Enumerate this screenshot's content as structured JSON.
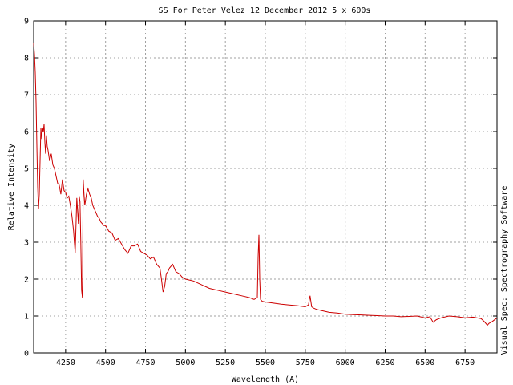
{
  "chart_data": {
    "type": "line",
    "title": "SS For Peter Velez 12 December 2012 5 x 600s",
    "xlabel": "Wavelength (A)",
    "ylabel": "Relative Intensity",
    "side_label": "Visual Spec: Spectrography Software",
    "xlim": [
      4050,
      6950
    ],
    "ylim": [
      0,
      9
    ],
    "xticks": [
      4250,
      4500,
      4750,
      5000,
      5250,
      5500,
      5750,
      6000,
      6250,
      6500,
      6750
    ],
    "yticks": [
      0,
      1,
      2,
      3,
      4,
      5,
      6,
      7,
      8,
      9
    ],
    "grid": true,
    "line_color": "#cc0000",
    "series": [
      {
        "x": [
          4050,
          4055,
          4060,
          4065,
          4070,
          4075,
          4080,
          4085,
          4090,
          4095,
          4100,
          4105,
          4110,
          4115,
          4120,
          4125,
          4130,
          4135,
          4140,
          4150,
          4160,
          4170,
          4180,
          4190,
          4200,
          4210,
          4220,
          4230,
          4240,
          4250,
          4260,
          4270,
          4280,
          4290,
          4300,
          4310,
          4320,
          4330,
          4335,
          4340,
          4345,
          4350,
          4355,
          4360,
          4365,
          4370,
          4380,
          4390,
          4400,
          4410,
          4420,
          4430,
          4440,
          4450,
          4460,
          4470,
          4480,
          4490,
          4500,
          4520,
          4540,
          4560,
          4580,
          4600,
          4620,
          4640,
          4660,
          4680,
          4700,
          4720,
          4740,
          4760,
          4780,
          4800,
          4820,
          4840,
          4850,
          4860,
          4870,
          4880,
          4890,
          4900,
          4920,
          4940,
          4960,
          4980,
          5000,
          5050,
          5100,
          5150,
          5200,
          5250,
          5300,
          5350,
          5400,
          5430,
          5450,
          5455,
          5460,
          5465,
          5470,
          5480,
          5500,
          5550,
          5600,
          5650,
          5700,
          5750,
          5770,
          5780,
          5790,
          5800,
          5820,
          5850,
          5900,
          5950,
          6000,
          6050,
          6100,
          6150,
          6200,
          6250,
          6300,
          6350,
          6400,
          6450,
          6500,
          6530,
          6550,
          6570,
          6600,
          6650,
          6700,
          6750,
          6800,
          6850,
          6870,
          6890,
          6900,
          6920,
          6950
        ],
        "y": [
          8.4,
          8.1,
          7.6,
          6.8,
          5.6,
          4.5,
          3.9,
          4.3,
          5.2,
          6.1,
          5.8,
          6.1,
          6.0,
          6.2,
          5.7,
          5.4,
          5.9,
          5.6,
          5.5,
          5.2,
          5.4,
          5.1,
          5.0,
          4.8,
          4.6,
          4.55,
          4.3,
          4.7,
          4.4,
          4.35,
          4.2,
          4.25,
          4.0,
          3.7,
          3.3,
          2.7,
          4.2,
          3.5,
          4.25,
          4.1,
          3.0,
          1.7,
          1.5,
          4.7,
          4.3,
          4.0,
          4.3,
          4.45,
          4.3,
          4.2,
          4.0,
          3.9,
          3.8,
          3.7,
          3.65,
          3.55,
          3.5,
          3.45,
          3.45,
          3.3,
          3.25,
          3.05,
          3.1,
          2.95,
          2.8,
          2.7,
          2.9,
          2.9,
          2.95,
          2.75,
          2.7,
          2.65,
          2.55,
          2.6,
          2.4,
          2.3,
          2.0,
          1.65,
          1.8,
          2.15,
          2.2,
          2.3,
          2.4,
          2.2,
          2.15,
          2.05,
          2.0,
          1.95,
          1.85,
          1.75,
          1.7,
          1.65,
          1.6,
          1.55,
          1.5,
          1.45,
          1.5,
          2.6,
          3.2,
          2.0,
          1.45,
          1.4,
          1.38,
          1.35,
          1.32,
          1.3,
          1.28,
          1.25,
          1.3,
          1.55,
          1.25,
          1.22,
          1.18,
          1.15,
          1.1,
          1.08,
          1.05,
          1.04,
          1.03,
          1.02,
          1.01,
          1.0,
          1.0,
          0.98,
          0.99,
          1.0,
          0.95,
          0.98,
          0.83,
          0.9,
          0.95,
          1.0,
          0.98,
          0.95,
          0.97,
          0.93,
          0.85,
          0.75,
          0.8,
          0.85,
          0.95
        ]
      }
    ]
  }
}
